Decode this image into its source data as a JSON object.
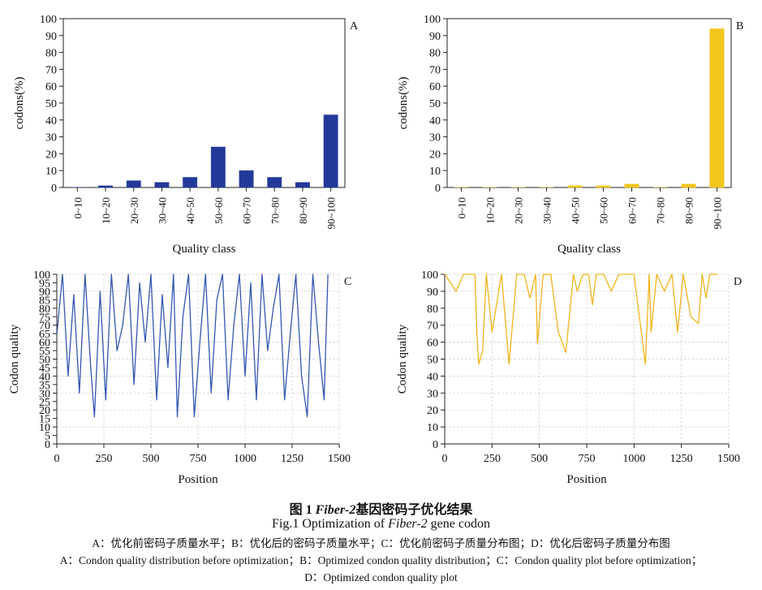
{
  "chart_data": [
    {
      "panel": "A",
      "type": "bar",
      "categories": [
        "0~10",
        "10~20",
        "20~30",
        "30~40",
        "40~50",
        "50~60",
        "60~70",
        "70~80",
        "80~90",
        "90~100"
      ],
      "values": [
        0,
        1,
        4,
        3,
        6,
        24,
        10,
        6,
        3,
        43
      ],
      "xlabel": "Quality class",
      "ylabel": "codons(%)",
      "ylim": [
        0,
        100
      ],
      "yticks": [
        0,
        10,
        20,
        30,
        40,
        50,
        60,
        70,
        80,
        90,
        100
      ],
      "color": "#23399a",
      "grid": false
    },
    {
      "panel": "B",
      "type": "bar",
      "categories": [
        "0~10",
        "10~20",
        "20~30",
        "30~40",
        "40~50",
        "50~60",
        "60~70",
        "70~80",
        "80~90",
        "90~100"
      ],
      "values": [
        0,
        0,
        0,
        0,
        1,
        1,
        2,
        0,
        2,
        94
      ],
      "xlabel": "Quality class",
      "ylabel": "codons(%)",
      "ylim": [
        0,
        100
      ],
      "yticks": [
        0,
        10,
        20,
        30,
        40,
        50,
        60,
        70,
        80,
        90,
        100
      ],
      "color": "#f2c61c",
      "grid": false
    },
    {
      "panel": "C",
      "type": "line",
      "x": [
        1,
        30,
        60,
        90,
        120,
        150,
        180,
        200,
        230,
        260,
        290,
        320,
        350,
        380,
        410,
        440,
        470,
        500,
        530,
        560,
        590,
        620,
        640,
        670,
        700,
        730,
        760,
        790,
        820,
        850,
        880,
        910,
        940,
        970,
        1000,
        1030,
        1060,
        1090,
        1120,
        1150,
        1180,
        1210,
        1240,
        1270,
        1300,
        1330,
        1360,
        1390,
        1420,
        1440
      ],
      "y": [
        65,
        100,
        40,
        88,
        30,
        100,
        45,
        16,
        90,
        26,
        100,
        55,
        70,
        100,
        35,
        95,
        60,
        100,
        26,
        88,
        45,
        100,
        16,
        75,
        100,
        16,
        60,
        100,
        30,
        85,
        100,
        26,
        70,
        100,
        40,
        95,
        26,
        100,
        55,
        80,
        100,
        26,
        65,
        100,
        40,
        16,
        100,
        60,
        26,
        100
      ],
      "xlabel": "Position",
      "ylabel": "Codon quality",
      "xlim": [
        0,
        1500
      ],
      "ylim": [
        0,
        100
      ],
      "xticks": [
        0,
        250,
        500,
        750,
        1000,
        1250,
        1500
      ],
      "yticks": [
        0,
        5,
        10,
        15,
        20,
        25,
        30,
        35,
        40,
        45,
        50,
        55,
        60,
        65,
        70,
        75,
        80,
        85,
        90,
        95,
        100
      ],
      "color": "#3557b0",
      "grid": true
    },
    {
      "panel": "D",
      "type": "line",
      "x": [
        1,
        60,
        100,
        160,
        170,
        180,
        200,
        220,
        250,
        300,
        340,
        380,
        420,
        450,
        480,
        490,
        520,
        560,
        600,
        640,
        680,
        700,
        730,
        760,
        780,
        800,
        840,
        880,
        920,
        960,
        1000,
        1060,
        1080,
        1090,
        1120,
        1160,
        1200,
        1230,
        1260,
        1300,
        1340,
        1360,
        1380,
        1400,
        1440
      ],
      "y": [
        100,
        90,
        100,
        100,
        65,
        47,
        55,
        100,
        66,
        100,
        47,
        100,
        100,
        86,
        100,
        59,
        100,
        100,
        66,
        54,
        100,
        90,
        100,
        100,
        82,
        100,
        100,
        90,
        100,
        100,
        100,
        47,
        100,
        66,
        100,
        90,
        100,
        66,
        100,
        75,
        71,
        100,
        86,
        100,
        100
      ],
      "xlabel": "Position",
      "ylabel": "Codon quality",
      "xlim": [
        0,
        1500
      ],
      "ylim": [
        0,
        100
      ],
      "xticks": [
        0,
        250,
        500,
        750,
        1000,
        1250,
        1500
      ],
      "yticks": [
        0,
        10,
        20,
        30,
        40,
        50,
        60,
        70,
        80,
        90,
        100
      ],
      "color": "#f0b41b",
      "grid": true
    }
  ],
  "caption": {
    "title_prefix": "图   1   ",
    "title_italic": "Fiber-2",
    "title_suffix": "基因密码子优化结果",
    "en_prefix": "Fig.1    Optimization of ",
    "en_italic": "Fiber-2",
    "en_suffix": " gene codon",
    "line1": "A：优化前密码子质量水平；B：优化后的密码子质量水平；C：优化前密码子质量分布图；D：优化后密码子质量分布图",
    "line2": "A：Condon quality distribution before optimization；B：Optimized condon quality distribution；C：Condon quality plot before optimization；",
    "line3": "D：Optimized condon quality plot"
  }
}
